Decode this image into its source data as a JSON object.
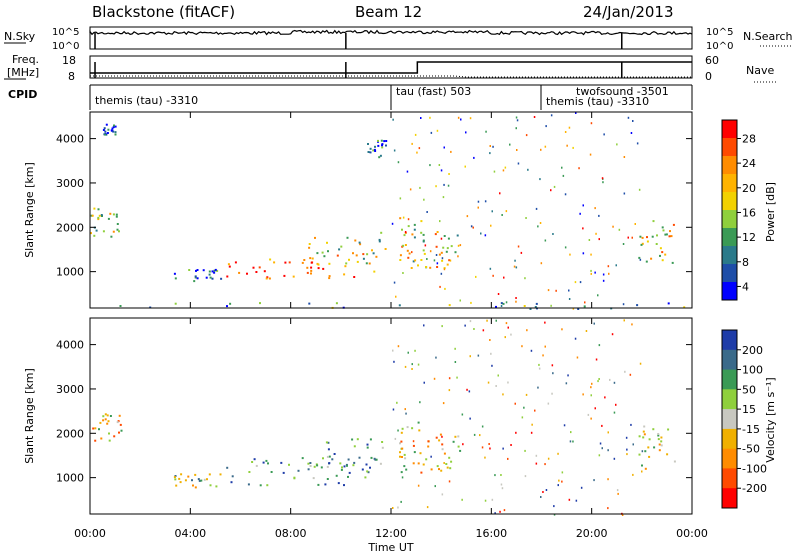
{
  "header": {
    "station": "Blackstone (fitACF)",
    "beam": "Beam 12",
    "date": "24/Jan/2013"
  },
  "status_panel": {
    "nsky_label": "N.Sky",
    "nsearch_label": "N.Search",
    "freq_label_top": "Freq.",
    "freq_label_bottom": "[MHz]",
    "nave_label": "Nave",
    "cpid_label": "CPID",
    "noise_ticks_left": [
      "10^5",
      "10^0"
    ],
    "noise_ticks_right": [
      "10^5",
      "10^0"
    ],
    "freq_ticks": [
      "18",
      "8"
    ],
    "nave_ticks": [
      "60",
      "0"
    ],
    "cpid_segments": [
      {
        "start_hr": 0.0,
        "end_hr": 12.0,
        "label": "themis (tau) -3310"
      },
      {
        "start_hr": 12.0,
        "end_hr": 18.0,
        "label": "tau (fast) 503"
      },
      {
        "start_hr": 18.0,
        "end_hr": 24.0,
        "label": "twofsound -3501"
      },
      {
        "start_hr": 18.0,
        "end_hr": 24.0,
        "label": "themis (tau) -3310"
      }
    ]
  },
  "chart_data": [
    {
      "type": "heatmap",
      "name": "power",
      "ylabel": "Slant Range [km]",
      "colorbar_label": "Power [dB]",
      "colorbar_ticks": [
        "28",
        "24",
        "20",
        "16",
        "12",
        "8",
        "4"
      ],
      "colorbar_colors": [
        "#ff0000",
        "#ff4a00",
        "#ff8c00",
        "#ffb300",
        "#f2d100",
        "#8fcf3c",
        "#3a9a55",
        "#2a7a8a",
        "#1e4ea8",
        "#0000ff"
      ],
      "xlim": [
        0,
        24
      ],
      "ylim": [
        180,
        4600
      ],
      "yticks": [
        "1000",
        "2000",
        "3000",
        "4000"
      ],
      "scatter_regions": [
        {
          "t0": 0.0,
          "t1": 1.3,
          "r0": 1800,
          "r1": 2500,
          "intensity": 0.55
        },
        {
          "t0": 0.5,
          "t1": 1.0,
          "r0": 4100,
          "r1": 4350,
          "intensity": 0.1
        },
        {
          "t0": 3.3,
          "t1": 5.2,
          "r0": 800,
          "r1": 1100,
          "intensity": 0.2
        },
        {
          "t0": 5.2,
          "t1": 11.5,
          "r0": 850,
          "r1": 1450,
          "intensity": 0.85
        },
        {
          "t0": 8.5,
          "t1": 11.8,
          "r0": 1200,
          "r1": 1900,
          "intensity": 0.5
        },
        {
          "t0": 11.0,
          "t1": 11.8,
          "r0": 3600,
          "r1": 4000,
          "intensity": 0.2
        },
        {
          "t0": 12.3,
          "t1": 13.2,
          "r0": 1100,
          "r1": 2300,
          "intensity": 0.55
        },
        {
          "t0": 13.2,
          "t1": 14.8,
          "r0": 1100,
          "r1": 2000,
          "intensity": 0.55
        },
        {
          "t0": 21.8,
          "t1": 23.3,
          "r0": 1200,
          "r1": 2200,
          "intensity": 0.6
        },
        {
          "t0": 0.0,
          "t1": 24.0,
          "r0": 180,
          "r1": 320,
          "intensity": 0.25
        }
      ]
    },
    {
      "type": "heatmap",
      "name": "velocity",
      "ylabel": "Slant Range [km]",
      "colorbar_label": "Velocity [m s⁻¹]",
      "colorbar_ticks": [
        "200",
        "100",
        "50",
        "15",
        "-15",
        "-50",
        "-100",
        "-200"
      ],
      "colorbar_colors": [
        "#1e3ca8",
        "#3a6a8a",
        "#3a9a55",
        "#8fcf3c",
        "#c8c8c0",
        "#f0b000",
        "#ff8c00",
        "#ff4a00",
        "#ff0000"
      ],
      "xlim": [
        0,
        24
      ],
      "ylim": [
        180,
        4600
      ],
      "yticks": [
        "1000",
        "2000",
        "3000",
        "4000"
      ],
      "xticks": [
        "00:00",
        "04:00",
        "08:00",
        "12:00",
        "16:00",
        "20:00",
        "00:00"
      ],
      "xlabel": "Time UT",
      "scatter_regions": [
        {
          "t0": 0.0,
          "t1": 1.3,
          "r0": 1800,
          "r1": 2500,
          "intensity": 0.45
        },
        {
          "t0": 3.3,
          "t1": 5.2,
          "r0": 800,
          "r1": 1100,
          "intensity": 0.55
        },
        {
          "t0": 5.2,
          "t1": 11.5,
          "r0": 850,
          "r1": 1500,
          "intensity": 0.8
        },
        {
          "t0": 8.5,
          "t1": 11.8,
          "r0": 1200,
          "r1": 1900,
          "intensity": 0.75
        },
        {
          "t0": 12.3,
          "t1": 13.2,
          "r0": 1100,
          "r1": 2300,
          "intensity": 0.45
        },
        {
          "t0": 13.2,
          "t1": 14.8,
          "r0": 1100,
          "r1": 2000,
          "intensity": 0.45
        },
        {
          "t0": 21.8,
          "t1": 23.3,
          "r0": 1200,
          "r1": 2200,
          "intensity": 0.45
        }
      ]
    }
  ]
}
